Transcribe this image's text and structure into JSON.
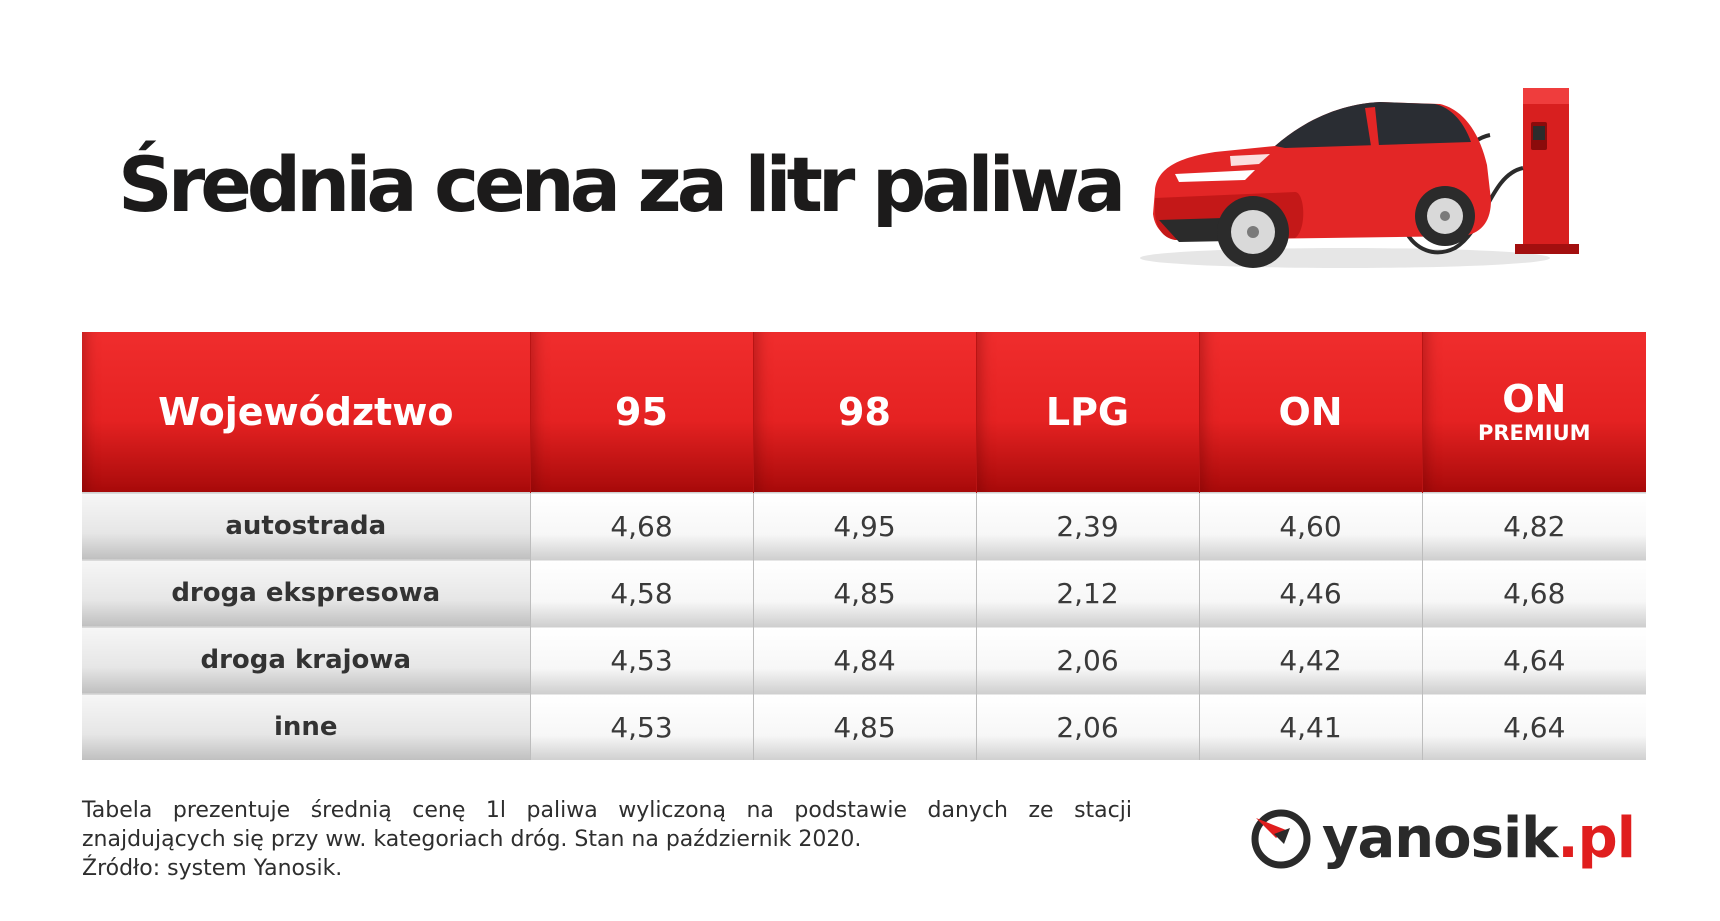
{
  "title": "Średnia cena za litr paliwa",
  "table": {
    "headers": [
      {
        "main": "Województwo",
        "sub": ""
      },
      {
        "main": "95",
        "sub": ""
      },
      {
        "main": "98",
        "sub": ""
      },
      {
        "main": "LPG",
        "sub": ""
      },
      {
        "main": "ON",
        "sub": ""
      },
      {
        "main": "ON",
        "sub": "PREMIUM"
      }
    ],
    "rows": [
      {
        "name": "autostrada",
        "values": [
          "4,68",
          "4,95",
          "2,39",
          "4,60",
          "4,82"
        ]
      },
      {
        "name": "droga ekspresowa",
        "values": [
          "4,58",
          "4,85",
          "2,12",
          "4,46",
          "4,68"
        ]
      },
      {
        "name": "droga krajowa",
        "values": [
          "4,53",
          "4,84",
          "2,06",
          "4,42",
          "4,64"
        ]
      },
      {
        "name": "inne",
        "values": [
          "4,53",
          "4,85",
          "2,06",
          "4,41",
          "4,64"
        ]
      }
    ]
  },
  "note": {
    "line1": "Tabela prezentuje średnią cenę 1l paliwa wyliczoną na podstawie danych ze stacji znajdujących się przy ww. kategoriach dróg. Stan na październik 2020.",
    "line2": "Źródło: system Yanosik."
  },
  "logo": {
    "name": "yanosik",
    "tld": ".pl"
  },
  "colors": {
    "header_red": "#e52222",
    "title": "#1c1b1b",
    "logo_red": "#e01e1e"
  },
  "icons": {
    "illustration": "car-charging-illustration",
    "logo": "yanosik-logo-icon"
  }
}
